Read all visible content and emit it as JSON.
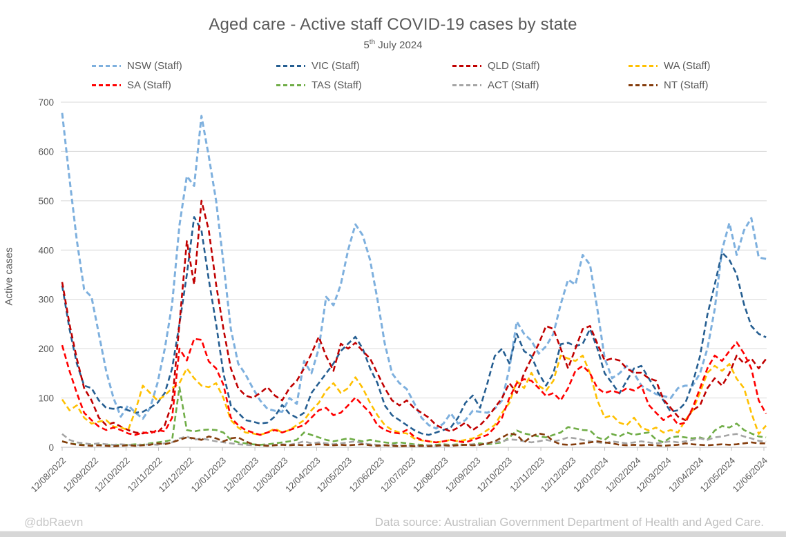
{
  "title": "Aged care - Active staff COVID-19 cases by state",
  "subtitle": {
    "day": "5",
    "ordinal": "th",
    "rest": " July 2024",
    "full": "5th July 2024"
  },
  "footer": {
    "handle": "@dbRaevn",
    "source": "Data source: Australian Government Department of Health and Aged Care."
  },
  "chart_data": {
    "type": "line",
    "title": "Aged care - Active staff COVID-19 cases by state",
    "subtitle": "5th July 2024",
    "ylabel": "Active cases",
    "xlabel": "",
    "ylim": [
      0,
      700
    ],
    "yticks": [
      0,
      100,
      200,
      300,
      400,
      500,
      600,
      700
    ],
    "grid": "horizontal",
    "legend_position": "top",
    "line_style": "dashed",
    "x_unit": "weekly data points, week 0 = 12/08/2022",
    "xticks": [
      {
        "label": "12/08/2022",
        "week": 0
      },
      {
        "label": "12/09/2022",
        "week": 4.43
      },
      {
        "label": "12/10/2022",
        "week": 8.71
      },
      {
        "label": "12/11/2022",
        "week": 13.14
      },
      {
        "label": "12/12/2022",
        "week": 17.43
      },
      {
        "label": "12/01/2023",
        "week": 21.86
      },
      {
        "label": "12/02/2023",
        "week": 26.29
      },
      {
        "label": "12/03/2023",
        "week": 30.29
      },
      {
        "label": "12/04/2023",
        "week": 34.71
      },
      {
        "label": "12/05/2023",
        "week": 39.0
      },
      {
        "label": "12/06/2023",
        "week": 43.43
      },
      {
        "label": "12/07/2023",
        "week": 47.71
      },
      {
        "label": "12/08/2023",
        "week": 52.14
      },
      {
        "label": "12/09/2023",
        "week": 56.57
      },
      {
        "label": "12/10/2023",
        "week": 60.86
      },
      {
        "label": "12/11/2023",
        "week": 65.29
      },
      {
        "label": "12/12/2023",
        "week": 69.57
      },
      {
        "label": "12/01/2024",
        "week": 74.0
      },
      {
        "label": "12/02/2024",
        "week": 78.43
      },
      {
        "label": "12/03/2024",
        "week": 82.57
      },
      {
        "label": "12/04/2024",
        "week": 87.0
      },
      {
        "label": "12/05/2024",
        "week": 91.29
      },
      {
        "label": "12/06/2024",
        "week": 95.71
      }
    ],
    "series": [
      {
        "name": "NSW (Staff)",
        "color": "#7EB0DE",
        "values": [
          678,
          545,
          420,
          320,
          305,
          230,
          155,
          100,
          62,
          85,
          70,
          58,
          80,
          130,
          200,
          290,
          450,
          550,
          530,
          672,
          590,
          500,
          374,
          240,
          170,
          148,
          120,
          95,
          78,
          74,
          72,
          100,
          88,
          175,
          150,
          200,
          305,
          288,
          330,
          400,
          452,
          430,
          380,
          300,
          210,
          150,
          130,
          118,
          90,
          60,
          45,
          38,
          48,
          69,
          48,
          55,
          74,
          72,
          70,
          78,
          95,
          160,
          255,
          230,
          216,
          190,
          205,
          230,
          290,
          340,
          330,
          390,
          370,
          280,
          180,
          140,
          150,
          165,
          150,
          125,
          116,
          108,
          104,
          100,
          120,
          125,
          125,
          150,
          200,
          280,
          400,
          455,
          390,
          440,
          465,
          385,
          382
        ]
      },
      {
        "name": "VIC (Staff)",
        "color": "#255E91",
        "values": [
          328,
          240,
          170,
          125,
          120,
          95,
          80,
          78,
          82,
          75,
          70,
          72,
          80,
          90,
          110,
          160,
          250,
          350,
          467,
          440,
          340,
          250,
          150,
          85,
          70,
          55,
          52,
          48,
          50,
          62,
          86,
          68,
          60,
          70,
          110,
          130,
          150,
          170,
          195,
          210,
          224,
          200,
          160,
          130,
          85,
          65,
          55,
          45,
          35,
          28,
          25,
          30,
          35,
          40,
          60,
          90,
          105,
          80,
          130,
          185,
          200,
          170,
          230,
          195,
          185,
          150,
          125,
          150,
          209,
          212,
          205,
          210,
          240,
          200,
          150,
          130,
          109,
          135,
          160,
          165,
          140,
          116,
          95,
          72,
          75,
          90,
          130,
          185,
          269,
          330,
          395,
          380,
          351,
          290,
          246,
          230,
          223
        ]
      },
      {
        "name": "QLD (Staff)",
        "color": "#C00000",
        "values": [
          335,
          250,
          180,
          120,
          95,
          60,
          45,
          50,
          42,
          35,
          30,
          28,
          32,
          30,
          45,
          90,
          250,
          418,
          330,
          500,
          440,
          330,
          240,
          160,
          120,
          105,
          100,
          110,
          122,
          105,
          95,
          120,
          135,
          160,
          190,
          224,
          185,
          155,
          210,
          200,
          212,
          195,
          180,
          150,
          120,
          95,
          85,
          95,
          80,
          70,
          60,
          45,
          38,
          32,
          40,
          50,
          35,
          45,
          60,
          80,
          100,
          130,
          110,
          150,
          180,
          210,
          246,
          240,
          200,
          160,
          200,
          240,
          246,
          210,
          176,
          180,
          176,
          160,
          151,
          151,
          140,
          135,
          97,
          80,
          62,
          55,
          75,
          85,
          120,
          140,
          125,
          150,
          186,
          170,
          180,
          160,
          179
        ]
      },
      {
        "name": "WA (Staff)",
        "color": "#FFC000",
        "values": [
          97,
          75,
          85,
          60,
          48,
          52,
          55,
          42,
          40,
          35,
          75,
          125,
          110,
          95,
          105,
          120,
          130,
          160,
          140,
          125,
          122,
          130,
          100,
          55,
          40,
          30,
          28,
          25,
          30,
          38,
          30,
          35,
          45,
          55,
          75,
          90,
          115,
          130,
          110,
          120,
          142,
          120,
          90,
          65,
          45,
          35,
          30,
          28,
          18,
          14,
          12,
          10,
          12,
          15,
          12,
          15,
          18,
          25,
          35,
          45,
          70,
          90,
          134,
          120,
          151,
          125,
          115,
          135,
          186,
          180,
          175,
          186,
          150,
          95,
          60,
          65,
          50,
          45,
          60,
          40,
          34,
          40,
          30,
          35,
          30,
          55,
          75,
          111,
          151,
          165,
          155,
          169,
          139,
          120,
          70,
          27,
          44
        ]
      },
      {
        "name": "SA (Staff)",
        "color": "#FF0000",
        "values": [
          207,
          155,
          110,
          70,
          55,
          42,
          35,
          40,
          35,
          28,
          25,
          30,
          28,
          35,
          32,
          60,
          200,
          176,
          220,
          218,
          174,
          160,
          127,
          60,
          45,
          35,
          30,
          25,
          30,
          35,
          30,
          35,
          40,
          45,
          60,
          75,
          80,
          65,
          70,
          85,
          101,
          85,
          70,
          45,
          35,
          30,
          28,
          35,
          22,
          15,
          12,
          10,
          12,
          15,
          12,
          10,
          15,
          20,
          25,
          40,
          60,
          100,
          130,
          138,
          135,
          120,
          104,
          110,
          95,
          120,
          155,
          165,
          150,
          120,
          110,
          115,
          110,
          120,
          115,
          125,
          86,
          70,
          55,
          65,
          46,
          50,
          80,
          120,
          160,
          186,
          175,
          195,
          213,
          190,
          160,
          95,
          68
        ]
      },
      {
        "name": "TAS (Staff)",
        "color": "#70AD47",
        "values": [
          12,
          8,
          6,
          5,
          4,
          5,
          4,
          5,
          4,
          5,
          6,
          5,
          8,
          10,
          12,
          15,
          122,
          35,
          32,
          35,
          36,
          35,
          30,
          15,
          10,
          8,
          6,
          5,
          6,
          8,
          10,
          12,
          15,
          30,
          25,
          20,
          15,
          12,
          15,
          18,
          15,
          12,
          15,
          12,
          10,
          8,
          10,
          8,
          6,
          5,
          4,
          5,
          6,
          5,
          6,
          5,
          6,
          8,
          6,
          8,
          10,
          20,
          34,
          28,
          25,
          22,
          20,
          25,
          30,
          41,
          38,
          35,
          34,
          20,
          15,
          27,
          22,
          30,
          25,
          28,
          30,
          16,
          10,
          20,
          22,
          20,
          18,
          20,
          15,
          34,
          43,
          40,
          48,
          35,
          28,
          22,
          20
        ]
      },
      {
        "name": "ACT (Staff)",
        "color": "#A5A5A5",
        "values": [
          27,
          15,
          10,
          8,
          6,
          8,
          6,
          5,
          6,
          5,
          4,
          5,
          6,
          5,
          8,
          10,
          18,
          22,
          15,
          18,
          15,
          12,
          10,
          8,
          6,
          5,
          4,
          5,
          4,
          5,
          6,
          5,
          8,
          12,
          8,
          10,
          8,
          6,
          8,
          10,
          12,
          8,
          6,
          5,
          4,
          5,
          4,
          3,
          4,
          3,
          4,
          3,
          4,
          5,
          4,
          5,
          6,
          5,
          8,
          10,
          12,
          16,
          15,
          12,
          10,
          12,
          15,
          12,
          15,
          20,
          18,
          15,
          12,
          10,
          8,
          12,
          10,
          8,
          10,
          12,
          10,
          8,
          10,
          12,
          10,
          12,
          15,
          18,
          15,
          20,
          22,
          25,
          27,
          22,
          18,
          13,
          11
        ]
      },
      {
        "name": "NT (Staff)",
        "color": "#843C0C",
        "values": [
          12,
          8,
          5,
          4,
          3,
          4,
          3,
          2,
          3,
          4,
          3,
          4,
          5,
          8,
          6,
          10,
          15,
          20,
          18,
          15,
          22,
          18,
          12,
          18,
          20,
          12,
          6,
          4,
          3,
          4,
          5,
          4,
          5,
          4,
          5,
          6,
          5,
          4,
          5,
          4,
          5,
          6,
          4,
          3,
          4,
          3,
          2,
          3,
          2,
          3,
          2,
          3,
          4,
          3,
          4,
          5,
          4,
          5,
          8,
          12,
          20,
          28,
          25,
          10,
          22,
          28,
          25,
          12,
          6,
          5,
          6,
          8,
          10,
          12,
          10,
          8,
          5,
          4,
          5,
          4,
          5,
          4,
          3,
          4,
          5,
          8,
          6,
          5,
          4,
          5,
          6,
          5,
          6,
          8,
          10,
          8,
          8
        ]
      }
    ]
  }
}
